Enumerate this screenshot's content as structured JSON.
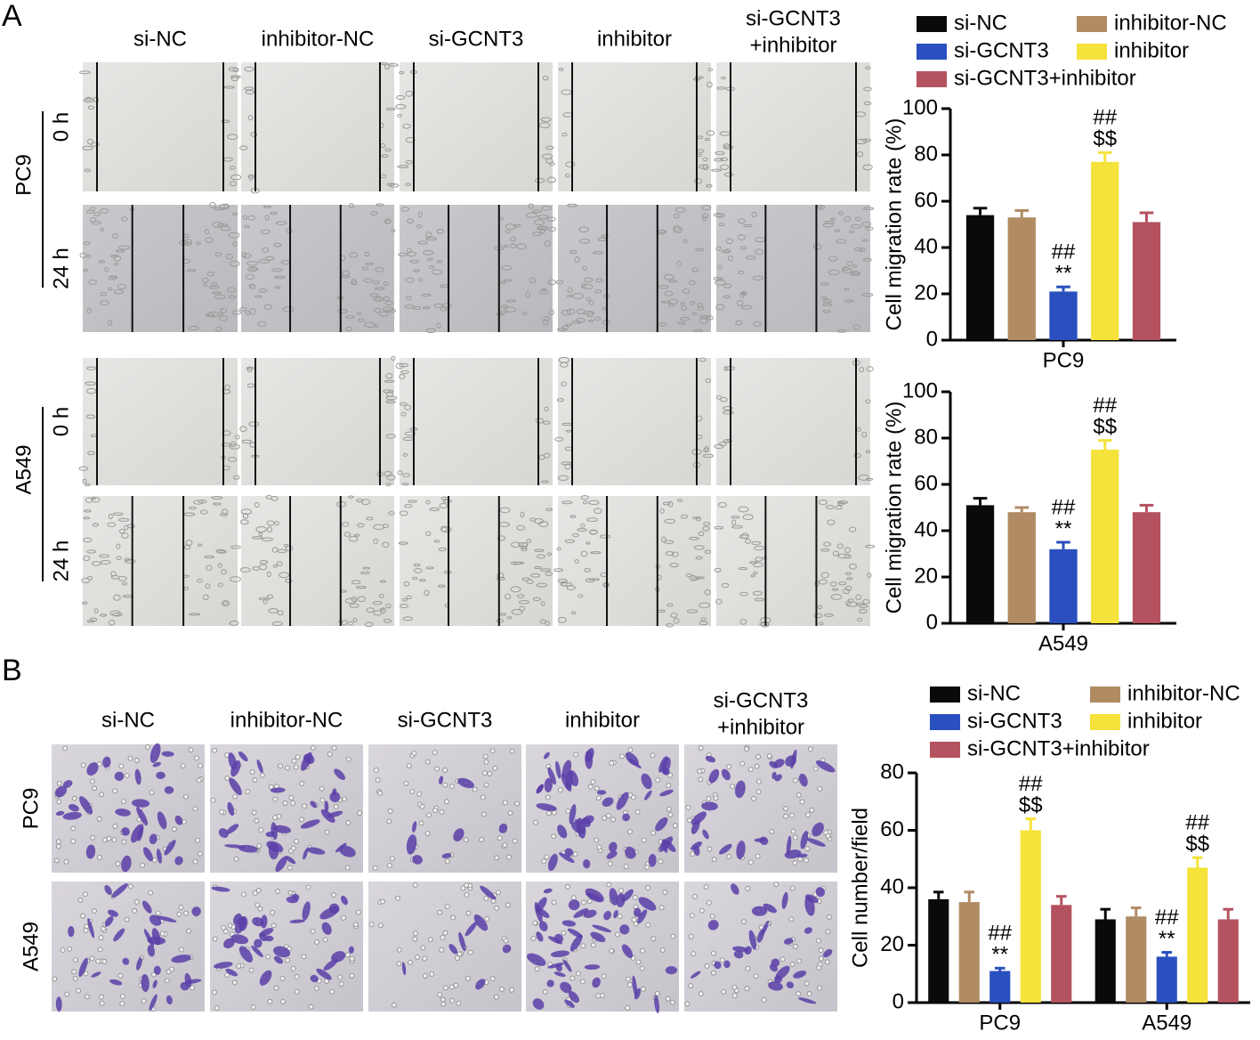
{
  "panels": {
    "a": {
      "letter": "A",
      "columns": [
        [
          "si-NC"
        ],
        [
          "inhibitor-NC"
        ],
        [
          "si-GCNT3"
        ],
        [
          "inhibitor"
        ],
        [
          "si-GCNT3",
          "+inhibitor"
        ]
      ],
      "rows": [
        {
          "cell": "PC9",
          "times": [
            "0 h",
            "24 h"
          ]
        },
        {
          "cell": "A549",
          "times": [
            "0 h",
            "24 h"
          ]
        }
      ]
    },
    "b": {
      "letter": "B",
      "columns": [
        [
          "si-NC"
        ],
        [
          "inhibitor-NC"
        ],
        [
          "si-GCNT3"
        ],
        [
          "inhibitor"
        ],
        [
          "si-GCNT3",
          "+inhibitor"
        ]
      ],
      "rows": [
        "PC9",
        "A549"
      ]
    }
  },
  "chart_data": [
    {
      "type": "bar",
      "ylabel": "Cell migration rate (%)",
      "categories": [
        "PC9"
      ],
      "ylim": [
        0,
        100
      ],
      "yticks": [
        0,
        20,
        40,
        60,
        80,
        100
      ],
      "series": [
        {
          "name": "si-NC",
          "color": "#0a0a0a",
          "values": [
            54
          ],
          "errors": [
            3
          ]
        },
        {
          "name": "inhibitor-NC",
          "color": "#b08b63",
          "values": [
            53
          ],
          "errors": [
            3
          ]
        },
        {
          "name": "si-GCNT3",
          "color": "#2a4fbf",
          "values": [
            21
          ],
          "errors": [
            2
          ],
          "annotations": [
            [
              "##",
              "**"
            ]
          ]
        },
        {
          "name": "inhibitor",
          "color": "#f5e23a",
          "values": [
            77
          ],
          "errors": [
            4
          ],
          "annotations": [
            [
              "##",
              "$$"
            ]
          ]
        },
        {
          "name": "si-GCNT3+inhibitor",
          "color": "#b5525f",
          "values": [
            51
          ],
          "errors": [
            4
          ]
        }
      ]
    },
    {
      "type": "bar",
      "ylabel": "Cell migration rate (%)",
      "categories": [
        "A549"
      ],
      "ylim": [
        0,
        100
      ],
      "yticks": [
        0,
        20,
        40,
        60,
        80,
        100
      ],
      "series": [
        {
          "color": "#0a0a0a",
          "values": [
            51
          ],
          "errors": [
            3
          ]
        },
        {
          "color": "#b08b63",
          "values": [
            48
          ],
          "errors": [
            2
          ]
        },
        {
          "color": "#2a4fbf",
          "values": [
            32
          ],
          "errors": [
            3
          ],
          "annotations": [
            [
              "##",
              "**"
            ]
          ]
        },
        {
          "color": "#f5e23a",
          "values": [
            75
          ],
          "errors": [
            4
          ],
          "annotations": [
            [
              "##",
              "$$"
            ]
          ]
        },
        {
          "color": "#b5525f",
          "values": [
            48
          ],
          "errors": [
            3
          ]
        }
      ]
    },
    {
      "type": "bar",
      "ylabel": "Cell number/field",
      "categories": [
        "PC9",
        "A549"
      ],
      "ylim": [
        0,
        80
      ],
      "yticks": [
        0,
        20,
        40,
        60,
        80
      ],
      "series": [
        {
          "name": "si-NC",
          "color": "#0a0a0a",
          "values": [
            36,
            29
          ],
          "errors": [
            2.5,
            3.5
          ]
        },
        {
          "name": "inhibitor-NC",
          "color": "#b08b63",
          "values": [
            35,
            30
          ],
          "errors": [
            3.5,
            3
          ]
        },
        {
          "name": "si-GCNT3",
          "color": "#2a4fbf",
          "values": [
            11,
            16
          ],
          "errors": [
            1,
            1.5
          ],
          "annotations": [
            [
              "##",
              "**"
            ],
            [
              "##",
              "**"
            ]
          ]
        },
        {
          "name": "inhibitor",
          "color": "#f5e23a",
          "values": [
            60,
            47
          ],
          "errors": [
            4,
            3.5
          ],
          "annotations": [
            [
              "##",
              "$$"
            ],
            [
              "##",
              "$$"
            ]
          ]
        },
        {
          "name": "si-GCNT3+inhibitor",
          "color": "#b5525f",
          "values": [
            34,
            29
          ],
          "errors": [
            3,
            3.5
          ]
        }
      ]
    }
  ]
}
